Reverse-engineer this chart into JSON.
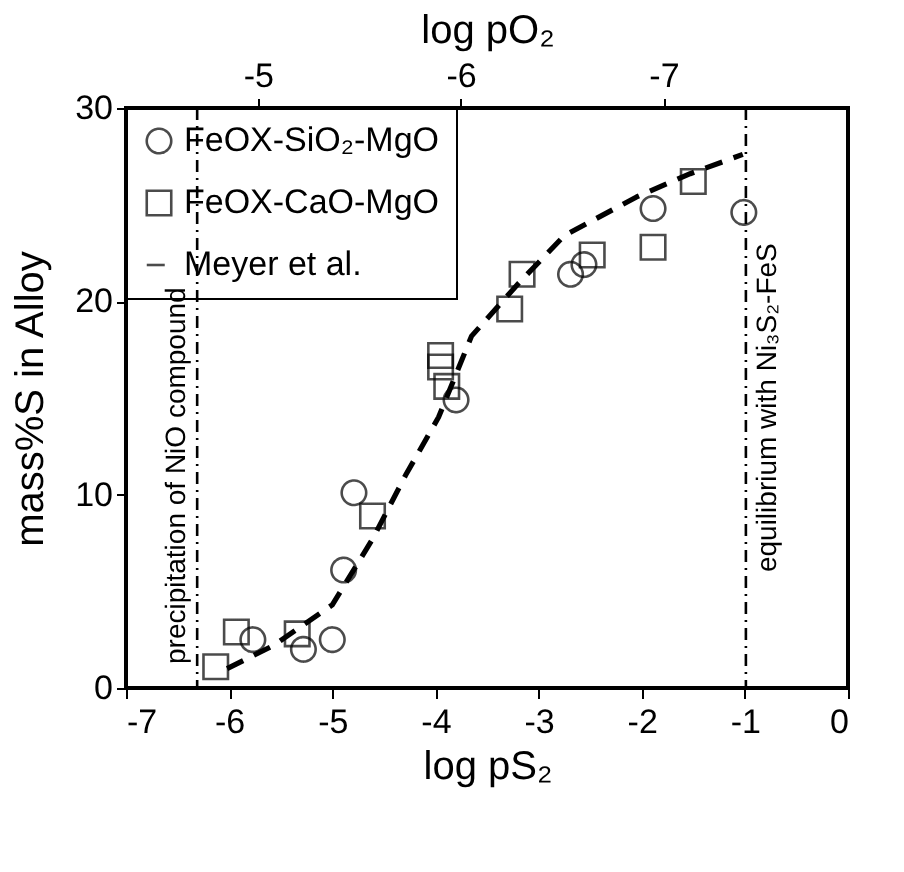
{
  "chart_data": {
    "type": "scatter",
    "xlabel": "log pS₂",
    "ylabel": "mass%S in Alloy",
    "x2label": "log pO₂",
    "xlim": [
      -7,
      0
    ],
    "xticks": [
      -7,
      -6,
      -5,
      -4,
      -3,
      -2,
      -1,
      0
    ],
    "ylim": [
      0,
      30
    ],
    "yticks": [
      0,
      10,
      20,
      30
    ],
    "x2lim": [
      -4.35,
      -7.91
    ],
    "x2ticks": [
      -5,
      -6,
      -7
    ],
    "grid": false,
    "legend": "top left",
    "series": [
      {
        "name": "FeOX-SiO₂-MgO",
        "marker": "circle",
        "color": "#000000",
        "x": [
          -5.77,
          -5.28,
          -5.0,
          -4.89,
          -4.79,
          -3.8,
          -2.69,
          -2.56,
          -1.89,
          -1.01
        ],
        "values": [
          2.5,
          2.0,
          2.5,
          6.1,
          10.1,
          14.9,
          21.4,
          21.9,
          24.8,
          24.6
        ]
      },
      {
        "name": "FeOX-CaO-MgO",
        "marker": "square",
        "color": "#000000",
        "x": [
          -6.13,
          -5.93,
          -5.34,
          -4.61,
          -3.89,
          -3.95,
          -3.95,
          -3.28,
          -3.16,
          -2.48,
          -1.89,
          -1.5
        ],
        "values": [
          1.1,
          2.9,
          2.8,
          8.9,
          15.6,
          16.6,
          17.2,
          19.6,
          21.4,
          22.4,
          22.8,
          26.2
        ]
      },
      {
        "name": "Meyer et al.",
        "type": "line",
        "line_style": "dashed",
        "color": "#000000",
        "x": [
          -6.02,
          -5.57,
          -5.0,
          -4.61,
          -4.29,
          -3.97,
          -3.65,
          -3.2,
          -2.75,
          -2.05,
          -1.53,
          -1.02
        ],
        "values": [
          1.0,
          2.2,
          4.3,
          7.7,
          11.0,
          14.0,
          18.2,
          20.9,
          23.4,
          25.4,
          26.6,
          27.6
        ]
      }
    ],
    "ref_lines": [
      {
        "axis": "x",
        "value": -6.31,
        "label": "precipitation of NiO compound",
        "line_style": "dashdot",
        "color": "#000000"
      },
      {
        "axis": "x",
        "value": -0.99,
        "label": "equilibrium with Ni₃S₂-FeS",
        "line_style": "dashdot",
        "color": "#000000"
      }
    ]
  }
}
